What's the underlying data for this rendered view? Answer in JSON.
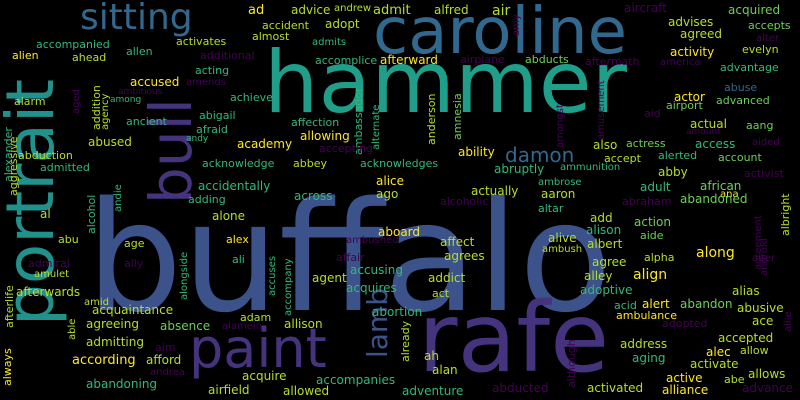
{
  "palette": {
    "background": "#000000",
    "deep_purple": "#440154",
    "indigo": "#3b528b",
    "blue_purple": "#46337e",
    "teal_blue": "#31688e",
    "teal": "#21918c",
    "green_teal": "#1f9e89",
    "green": "#35b779",
    "light_green": "#6ece58",
    "lime": "#b5de2b",
    "yellow": "#fde725"
  },
  "words": [
    {
      "text": "buffalo",
      "color": "#3b528b"
    },
    {
      "text": "hammer",
      "color": "#1f9e89"
    },
    {
      "text": "rafe",
      "color": "#46337e"
    },
    {
      "text": "caroline",
      "color": "#31688e"
    },
    {
      "text": "portrait",
      "color": "#21918c"
    },
    {
      "text": "bull",
      "color": "#46337e"
    },
    {
      "text": "paint",
      "color": "#46337e"
    },
    {
      "text": "sitting",
      "color": "#31688e"
    },
    {
      "text": "lamb",
      "color": "#3b528b"
    },
    {
      "text": "damon",
      "color": "#31688e"
    },
    {
      "text": "ad",
      "color": "#fde725"
    },
    {
      "text": "advice",
      "color": "#b5de2b"
    },
    {
      "text": "andrew",
      "color": "#b5de2b"
    },
    {
      "text": "admit",
      "color": "#b5de2b"
    },
    {
      "text": "alfred",
      "color": "#b5de2b"
    },
    {
      "text": "air",
      "color": "#b5de2b"
    },
    {
      "text": "aircraft",
      "color": "#440154"
    },
    {
      "text": "acquired",
      "color": "#6ece58"
    },
    {
      "text": "advises",
      "color": "#b5de2b"
    },
    {
      "text": "accepts",
      "color": "#6ece58"
    },
    {
      "text": "agreed",
      "color": "#b5de2b"
    },
    {
      "text": "alter",
      "color": "#440154"
    },
    {
      "text": "evelyn",
      "color": "#b5de2b"
    },
    {
      "text": "accident",
      "color": "#b5de2b"
    },
    {
      "text": "adopt",
      "color": "#b5de2b"
    },
    {
      "text": "amy",
      "color": "#440154"
    },
    {
      "text": "accomplice",
      "color": "#35b779"
    },
    {
      "text": "afterward",
      "color": "#fde725"
    },
    {
      "text": "airplane",
      "color": "#440154"
    },
    {
      "text": "abducts",
      "color": "#6ece58"
    },
    {
      "text": "america",
      "color": "#440154"
    },
    {
      "text": "activity",
      "color": "#fde725"
    },
    {
      "text": "advantage",
      "color": "#35b779"
    },
    {
      "text": "almost",
      "color": "#b5de2b"
    },
    {
      "text": "admits",
      "color": "#35b779"
    },
    {
      "text": "aftermath",
      "color": "#440154"
    },
    {
      "text": "accompanied",
      "color": "#35b779"
    },
    {
      "text": "alien",
      "color": "#fde725"
    },
    {
      "text": "allen",
      "color": "#35b779"
    },
    {
      "text": "ahead",
      "color": "#b5de2b"
    },
    {
      "text": "activates",
      "color": "#b5de2b"
    },
    {
      "text": "additional",
      "color": "#440154"
    },
    {
      "text": "amends",
      "color": "#440154"
    },
    {
      "text": "ambitious",
      "color": "#440154"
    },
    {
      "text": "acting",
      "color": "#35b779"
    },
    {
      "text": "accused",
      "color": "#fde725"
    },
    {
      "text": "ambassador",
      "color": "#35b779"
    },
    {
      "text": "actor",
      "color": "#fde725"
    },
    {
      "text": "abuse",
      "color": "#31688e"
    },
    {
      "text": "advanced",
      "color": "#6ece58"
    },
    {
      "text": "aid",
      "color": "#440154"
    },
    {
      "text": "airport",
      "color": "#6ece58"
    },
    {
      "text": "alarm",
      "color": "#b5de2b"
    },
    {
      "text": "aged",
      "color": "#440154"
    },
    {
      "text": "addition",
      "color": "#b5de2b"
    },
    {
      "text": "agency",
      "color": "#b5de2b"
    },
    {
      "text": "among",
      "color": "#35b779"
    },
    {
      "text": "achieve",
      "color": "#35b779"
    },
    {
      "text": "abigail",
      "color": "#35b779"
    },
    {
      "text": "afraid",
      "color": "#35b779"
    },
    {
      "text": "ancient",
      "color": "#35b779"
    },
    {
      "text": "andy",
      "color": "#35b779"
    },
    {
      "text": "alternate",
      "color": "#35b779"
    },
    {
      "text": "anderson",
      "color": "#b5de2b"
    },
    {
      "text": "amnesia",
      "color": "#6ece58"
    },
    {
      "text": "amongst",
      "color": "#440154"
    },
    {
      "text": "amusement",
      "color": "#440154"
    },
    {
      "text": "actual",
      "color": "#b5de2b"
    },
    {
      "text": "aang",
      "color": "#6ece58"
    },
    {
      "text": "amount",
      "color": "#440154"
    },
    {
      "text": "aided",
      "color": "#440154"
    },
    {
      "text": "abused",
      "color": "#b5de2b"
    },
    {
      "text": "academy",
      "color": "#fde725"
    },
    {
      "text": "allowing",
      "color": "#fde725"
    },
    {
      "text": "affection",
      "color": "#35b779"
    },
    {
      "text": "ability",
      "color": "#fde725"
    },
    {
      "text": "also",
      "color": "#b5de2b"
    },
    {
      "text": "actress",
      "color": "#6ece58"
    },
    {
      "text": "access",
      "color": "#35b779"
    },
    {
      "text": "account",
      "color": "#6ece58"
    },
    {
      "text": "abduction",
      "color": "#b5de2b"
    },
    {
      "text": "admitted",
      "color": "#35b779"
    },
    {
      "text": "acknowledge",
      "color": "#35b779"
    },
    {
      "text": "abbey",
      "color": "#b5de2b"
    },
    {
      "text": "accepting",
      "color": "#440154"
    },
    {
      "text": "acknowledges",
      "color": "#35b779"
    },
    {
      "text": "accept",
      "color": "#b5de2b"
    },
    {
      "text": "alerted",
      "color": "#35b779"
    },
    {
      "text": "activist",
      "color": "#440154"
    },
    {
      "text": "alexander",
      "color": "#35b779"
    },
    {
      "text": "aggressive",
      "color": "#b5de2b"
    },
    {
      "text": "accidentally",
      "color": "#35b779"
    },
    {
      "text": "abruptly",
      "color": "#35b779"
    },
    {
      "text": "ammunition",
      "color": "#35b779"
    },
    {
      "text": "abby",
      "color": "#b5de2b"
    },
    {
      "text": "alice",
      "color": "#fde725"
    },
    {
      "text": "ago",
      "color": "#b5de2b"
    },
    {
      "text": "adult",
      "color": "#35b779"
    },
    {
      "text": "african",
      "color": "#6ece58"
    },
    {
      "text": "across",
      "color": "#35b779"
    },
    {
      "text": "actually",
      "color": "#b5de2b"
    },
    {
      "text": "aaron",
      "color": "#b5de2b"
    },
    {
      "text": "ambrose",
      "color": "#35b779"
    },
    {
      "text": "ana",
      "color": "#fde725"
    },
    {
      "text": "adding",
      "color": "#35b779"
    },
    {
      "text": "alcoholic",
      "color": "#440154"
    },
    {
      "text": "abraham",
      "color": "#440154"
    },
    {
      "text": "abandoned",
      "color": "#6ece58"
    },
    {
      "text": "albright",
      "color": "#b5de2b"
    },
    {
      "text": "alone",
      "color": "#b5de2b"
    },
    {
      "text": "altar",
      "color": "#35b779"
    },
    {
      "text": "add",
      "color": "#b5de2b"
    },
    {
      "text": "action",
      "color": "#6ece58"
    },
    {
      "text": "agreement",
      "color": "#440154"
    },
    {
      "text": "al",
      "color": "#b5de2b"
    },
    {
      "text": "abu",
      "color": "#b5de2b"
    },
    {
      "text": "alcohol",
      "color": "#35b779"
    },
    {
      "text": "andie",
      "color": "#35b779"
    },
    {
      "text": "alex",
      "color": "#fde725"
    },
    {
      "text": "aboard",
      "color": "#fde725"
    },
    {
      "text": "alison",
      "color": "#35b779"
    },
    {
      "text": "aide",
      "color": "#6ece58"
    },
    {
      "text": "age",
      "color": "#b5de2b"
    },
    {
      "text": "albert",
      "color": "#b5de2b"
    },
    {
      "text": "along",
      "color": "#fde725"
    },
    {
      "text": "android",
      "color": "#440154"
    },
    {
      "text": "ali",
      "color": "#35b779"
    },
    {
      "text": "ambushed",
      "color": "#440154"
    },
    {
      "text": "affect",
      "color": "#b5de2b"
    },
    {
      "text": "alive",
      "color": "#b5de2b"
    },
    {
      "text": "agree",
      "color": "#b5de2b"
    },
    {
      "text": "alpha",
      "color": "#b5de2b"
    },
    {
      "text": "ally",
      "color": "#440154"
    },
    {
      "text": "affair",
      "color": "#440154"
    },
    {
      "text": "ambush",
      "color": "#b5de2b"
    },
    {
      "text": "alley",
      "color": "#b5de2b"
    },
    {
      "text": "alter",
      "color": "#440154"
    },
    {
      "text": "alongside",
      "color": "#35b779"
    },
    {
      "text": "accusing",
      "color": "#35b779"
    },
    {
      "text": "agrees",
      "color": "#b5de2b"
    },
    {
      "text": "align",
      "color": "#fde725"
    },
    {
      "text": "admiral",
      "color": "#440154"
    },
    {
      "text": "accuses",
      "color": "#35b779"
    },
    {
      "text": "accompany",
      "color": "#35b779"
    },
    {
      "text": "agent",
      "color": "#b5de2b"
    },
    {
      "text": "addict",
      "color": "#b5de2b"
    },
    {
      "text": "alias",
      "color": "#b5de2b"
    },
    {
      "text": "amulet",
      "color": "#b5de2b"
    },
    {
      "text": "acquires",
      "color": "#35b779"
    },
    {
      "text": "act",
      "color": "#b5de2b"
    },
    {
      "text": "adoptive",
      "color": "#35b779"
    },
    {
      "text": "afterwards",
      "color": "#b5de2b"
    },
    {
      "text": "afterlife",
      "color": "#b5de2b"
    },
    {
      "text": "amid",
      "color": "#b5de2b"
    },
    {
      "text": "acid",
      "color": "#35b779"
    },
    {
      "text": "alert",
      "color": "#fde725"
    },
    {
      "text": "abandon",
      "color": "#6ece58"
    },
    {
      "text": "abusive",
      "color": "#b5de2b"
    },
    {
      "text": "acquaintance",
      "color": "#b5de2b"
    },
    {
      "text": "abortion",
      "color": "#35b779"
    },
    {
      "text": "ambulance",
      "color": "#fde725"
    },
    {
      "text": "ace",
      "color": "#b5de2b"
    },
    {
      "text": "adopted",
      "color": "#440154"
    },
    {
      "text": "allie",
      "color": "#440154"
    },
    {
      "text": "able",
      "color": "#b5de2b"
    },
    {
      "text": "adam",
      "color": "#b5de2b"
    },
    {
      "text": "agreeing",
      "color": "#b5de2b"
    },
    {
      "text": "absence",
      "color": "#6ece58"
    },
    {
      "text": "alamein",
      "color": "#440154"
    },
    {
      "text": "allison",
      "color": "#b5de2b"
    },
    {
      "text": "already",
      "color": "#b5de2b"
    },
    {
      "text": "address",
      "color": "#b5de2b"
    },
    {
      "text": "accepted",
      "color": "#b5de2b"
    },
    {
      "text": "alec",
      "color": "#fde725"
    },
    {
      "text": "allow",
      "color": "#b5de2b"
    },
    {
      "text": "admitting",
      "color": "#b5de2b"
    },
    {
      "text": "aim",
      "color": "#440154"
    },
    {
      "text": "activate",
      "color": "#b5de2b"
    },
    {
      "text": "allows",
      "color": "#b5de2b"
    },
    {
      "text": "according",
      "color": "#fde725"
    },
    {
      "text": "afford",
      "color": "#b5de2b"
    },
    {
      "text": "always",
      "color": "#fde725"
    },
    {
      "text": "andrea",
      "color": "#440154"
    },
    {
      "text": "ah",
      "color": "#b5de2b"
    },
    {
      "text": "aging",
      "color": "#35b779"
    },
    {
      "text": "active",
      "color": "#fde725"
    },
    {
      "text": "abe",
      "color": "#b5de2b"
    },
    {
      "text": "alan",
      "color": "#b5de2b"
    },
    {
      "text": "although",
      "color": "#440154"
    },
    {
      "text": "acquire",
      "color": "#b5de2b"
    },
    {
      "text": "accompanies",
      "color": "#35b779"
    },
    {
      "text": "abandoning",
      "color": "#35b779"
    },
    {
      "text": "airfield",
      "color": "#b5de2b"
    },
    {
      "text": "allowed",
      "color": "#b5de2b"
    },
    {
      "text": "adventure",
      "color": "#35b779"
    },
    {
      "text": "abducted",
      "color": "#440154"
    },
    {
      "text": "activated",
      "color": "#b5de2b"
    },
    {
      "text": "alliance",
      "color": "#fde725"
    },
    {
      "text": "advance",
      "color": "#440154"
    }
  ]
}
